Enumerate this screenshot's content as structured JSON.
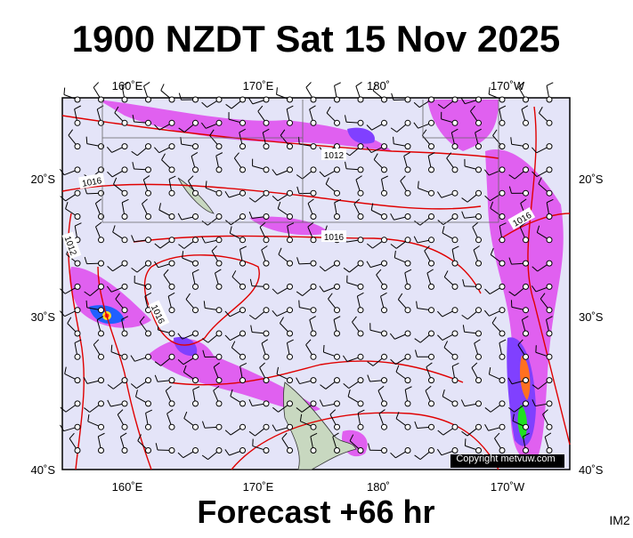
{
  "header": {
    "title": "1900 NZDT Sat 15 Nov 2025"
  },
  "map": {
    "top_labels": [
      "160˚E",
      "170˚E",
      "180˚",
      "170˚W"
    ],
    "bottom_labels": [
      "160˚E",
      "170˚E",
      "180˚",
      "170˚W"
    ],
    "left_labels": [
      "20˚S",
      "30˚S",
      "40˚S"
    ],
    "right_labels": [
      "20˚S",
      "30˚S",
      "40˚S"
    ],
    "isobar_labels": [
      "1012",
      "1016",
      "1016",
      "1016",
      "1012",
      "1016"
    ],
    "copyright": "Copyright metvuw.com"
  },
  "footer": {
    "forecast": "Forecast +66 hr",
    "code": "IM2"
  }
}
